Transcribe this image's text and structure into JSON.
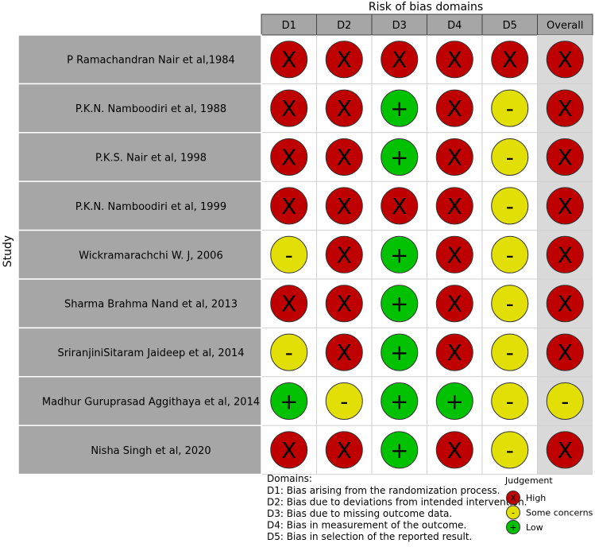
{
  "chart_data": {
    "type": "table",
    "title": "Risk of bias domains",
    "ylabel": "Study",
    "columns": [
      "D1",
      "D2",
      "D3",
      "D4",
      "D5",
      "Overall"
    ],
    "rows": [
      {
        "study": "P Ramachandran Nair et al,1984",
        "judgements": [
          "high",
          "high",
          "high",
          "high",
          "high",
          "high"
        ]
      },
      {
        "study": "P.K.N. Namboodiri et al, 1988",
        "judgements": [
          "high",
          "high",
          "low",
          "high",
          "some",
          "high"
        ]
      },
      {
        "study": "P.K.S. Nair et al, 1998",
        "judgements": [
          "high",
          "high",
          "low",
          "high",
          "some",
          "high"
        ]
      },
      {
        "study": "P.K.N. Namboodiri et al, 1999",
        "judgements": [
          "high",
          "high",
          "high",
          "high",
          "some",
          "high"
        ]
      },
      {
        "study": "Wickramarachchi W. J, 2006",
        "judgements": [
          "some",
          "high",
          "low",
          "high",
          "some",
          "high"
        ]
      },
      {
        "study": "Sharma Brahma Nand et al, 2013",
        "judgements": [
          "high",
          "high",
          "low",
          "high",
          "some",
          "high"
        ]
      },
      {
        "study": "SriranjiniSitaram Jaideep et al, 2014",
        "judgements": [
          "some",
          "high",
          "low",
          "high",
          "some",
          "high"
        ]
      },
      {
        "study": "Madhur Guruprasad Aggithaya et al, 2014",
        "judgements": [
          "low",
          "some",
          "low",
          "low",
          "some",
          "some"
        ]
      },
      {
        "study": "Nisha Singh et al, 2020",
        "judgements": [
          "high",
          "high",
          "low",
          "high",
          "some",
          "high"
        ]
      }
    ],
    "domains_title": "Domains:",
    "domains": [
      "D1: Bias arising from the randomization process.",
      "D2: Bias due to deviations from intended intervention.",
      "D3: Bias due to missing outcome data.",
      "D4: Bias in measurement of the outcome.",
      "D5: Bias in selection of the reported result."
    ],
    "legend_title": "Judgement",
    "legend": [
      {
        "key": "high",
        "label": "High",
        "symbol": "X",
        "color": "#bf0000"
      },
      {
        "key": "some",
        "label": "Some concerns",
        "symbol": "-",
        "color": "#e2df07"
      },
      {
        "key": "low",
        "label": "Low",
        "symbol": "+",
        "color": "#02c100"
      }
    ]
  }
}
